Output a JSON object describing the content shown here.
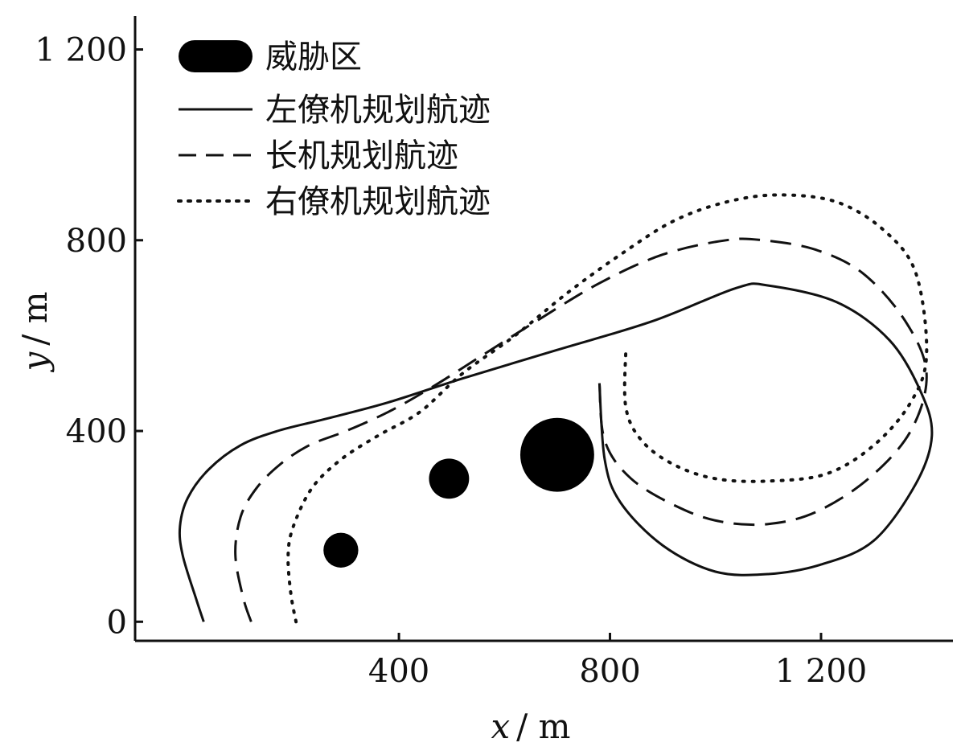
{
  "chart_data": {
    "type": "line",
    "xlabel_var": "x",
    "xlabel_unit": "/ m",
    "ylabel_var": "y",
    "ylabel_unit": "/ m",
    "xlim": [
      -100,
      1450
    ],
    "ylim": [
      -40,
      1270
    ],
    "x_ticks": [
      400,
      800,
      1200
    ],
    "x_tick_labels": [
      "400",
      "800",
      "1 200"
    ],
    "y_ticks": [
      0,
      400,
      800,
      1200
    ],
    "y_tick_labels": [
      "0",
      "400",
      "800",
      "1 200"
    ],
    "grid": false,
    "legend": {
      "placement": "top-left",
      "entries": [
        "威胁区",
        "左僚机规划航迹",
        "长机规划航迹",
        "右僚机规划航迹"
      ]
    },
    "threats": [
      {
        "cx": 700,
        "cy": 350,
        "r": 70
      },
      {
        "cx": 495,
        "cy": 300,
        "r": 38
      },
      {
        "cx": 290,
        "cy": 150,
        "r": 33
      }
    ],
    "series": [
      {
        "name": "左僚机规划航迹",
        "style": "solid",
        "x": [
          30,
          15,
          -10,
          -15,
          0,
          40,
          100,
          170,
          260,
          380,
          520,
          700,
          880,
          1040,
          1100,
          1230,
          1330,
          1390,
          1410,
          1380,
          1300,
          1200,
          1100,
          1000,
          900,
          820,
          790,
          780
        ],
        "y": [
          0,
          50,
          140,
          200,
          260,
          320,
          370,
          400,
          425,
          460,
          510,
          570,
          630,
          700,
          705,
          670,
          590,
          480,
          390,
          290,
          170,
          120,
          100,
          105,
          160,
          250,
          340,
          500
        ]
      },
      {
        "name": "长机规划航迹",
        "style": "dashed",
        "x": [
          120,
          105,
          90,
          100,
          130,
          175,
          230,
          300,
          380,
          460,
          560,
          660,
          780,
          900,
          1020,
          1090,
          1190,
          1280,
          1360,
          1400,
          1370,
          1290,
          1190,
          1100,
          1010,
          930,
          840,
          790,
          780
        ],
        "y": [
          0,
          50,
          140,
          220,
          280,
          330,
          370,
          400,
          440,
          490,
          560,
          630,
          710,
          770,
          800,
          800,
          780,
          730,
          630,
          520,
          400,
          300,
          230,
          205,
          210,
          240,
          300,
          380,
          500
        ]
      },
      {
        "name": "右僚机规划航迹",
        "style": "dotted",
        "x": [
          205,
          195,
          190,
          200,
          235,
          290,
          360,
          440,
          520,
          620,
          720,
          820,
          920,
          1020,
          1120,
          1230,
          1320,
          1380,
          1400,
          1370,
          1300,
          1210,
          1100,
          1000,
          920,
          860,
          830,
          830
        ],
        "y": [
          0,
          60,
          140,
          200,
          280,
          340,
          390,
          440,
          520,
          600,
          690,
          770,
          840,
          880,
          895,
          880,
          820,
          730,
          560,
          460,
          370,
          310,
          295,
          300,
          330,
          380,
          450,
          570
        ]
      }
    ]
  }
}
